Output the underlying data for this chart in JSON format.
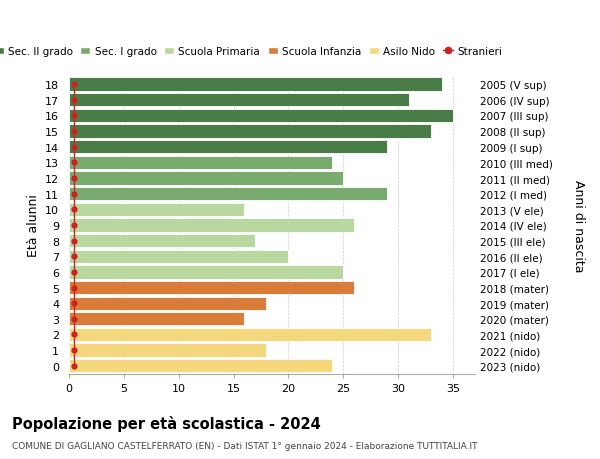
{
  "ages": [
    18,
    17,
    16,
    15,
    14,
    13,
    12,
    11,
    10,
    9,
    8,
    7,
    6,
    5,
    4,
    3,
    2,
    1,
    0
  ],
  "right_labels": [
    "2005 (V sup)",
    "2006 (IV sup)",
    "2007 (III sup)",
    "2008 (II sup)",
    "2009 (I sup)",
    "2010 (III med)",
    "2011 (II med)",
    "2012 (I med)",
    "2013 (V ele)",
    "2014 (IV ele)",
    "2015 (III ele)",
    "2016 (II ele)",
    "2017 (I ele)",
    "2018 (mater)",
    "2019 (mater)",
    "2020 (mater)",
    "2021 (nido)",
    "2022 (nido)",
    "2023 (nido)"
  ],
  "bar_values": [
    34,
    31,
    35,
    33,
    29,
    24,
    25,
    29,
    16,
    26,
    17,
    20,
    25,
    26,
    18,
    16,
    33,
    18,
    24
  ],
  "bar_colors": [
    "#4a7c47",
    "#4a7c47",
    "#4a7c47",
    "#4a7c47",
    "#4a7c47",
    "#7aab6e",
    "#7aab6e",
    "#7aab6e",
    "#b8d8a0",
    "#b8d8a0",
    "#b8d8a0",
    "#b8d8a0",
    "#b8d8a0",
    "#d97c3a",
    "#d97c3a",
    "#d97c3a",
    "#f5d87e",
    "#f5d87e",
    "#f5d87e"
  ],
  "stranieri_color": "#cc2222",
  "legend_labels": [
    "Sec. II grado",
    "Sec. I grado",
    "Scuola Primaria",
    "Scuola Infanzia",
    "Asilo Nido",
    "Stranieri"
  ],
  "legend_colors": [
    "#4a7c47",
    "#7aab6e",
    "#b8d8a0",
    "#d97c3a",
    "#f5d87e",
    "#cc2222"
  ],
  "ylabel_left": "Età alunni",
  "ylabel_right": "Anni di nascita",
  "xlim_max": 37,
  "xticks": [
    0,
    5,
    10,
    15,
    20,
    25,
    30,
    35
  ],
  "title": "Popolazione per età scolastica - 2024",
  "subtitle": "COMUNE DI GAGLIANO CASTELFERRATO (EN) - Dati ISTAT 1° gennaio 2024 - Elaborazione TUTTITALIA.IT",
  "bg_color": "#ffffff",
  "bar_height": 0.85,
  "grid_color": "#cccccc"
}
